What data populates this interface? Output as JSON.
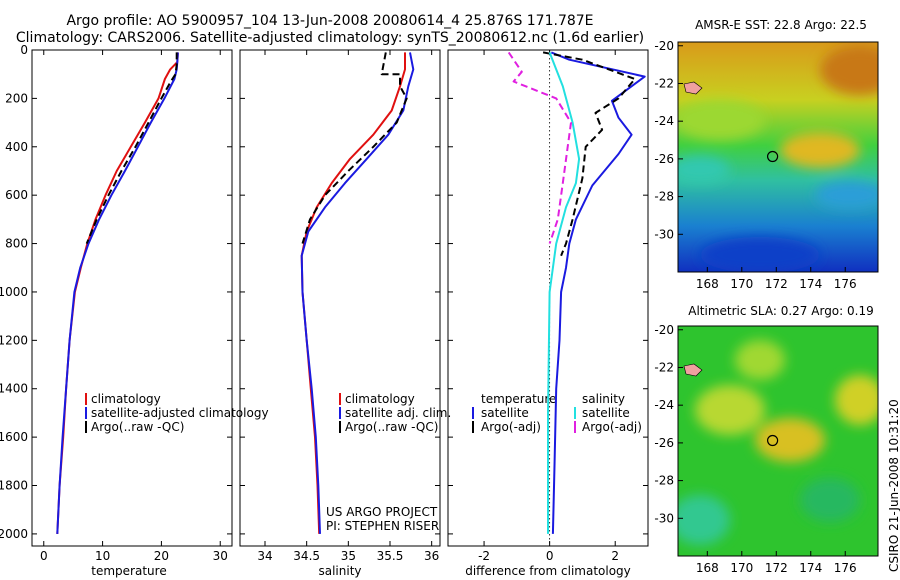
{
  "header": {
    "line1": "Argo profile: AO 5900957_104 13-Jun-2008 20080614_4 25.876S 171.787E",
    "line2": "Climatology: CARS2006. Satellite-adjusted climatology: synTS_20080612.nc (1.6d earlier)"
  },
  "stamp": "CSIRO 21-Jun-2008 10:31:20",
  "colors": {
    "red": "#e01010",
    "blue": "#1a1ae0",
    "black": "#000000",
    "cyan": "#22e0e0",
    "magenta": "#e020e0"
  },
  "chart_data": [
    {
      "type": "line",
      "xlabel": "temperature",
      "xlim": [
        -2,
        32
      ],
      "ylim": [
        0,
        2050
      ],
      "xticks": [
        "0",
        "10",
        "20",
        "30"
      ],
      "yticks": [
        "0",
        "200",
        "400",
        "600",
        "800",
        "1000",
        "1200",
        "1400",
        "1600",
        "1800",
        "2000"
      ],
      "legend": [
        "climatology",
        "satellite-adjusted climatology",
        "Argo(..raw -QC)"
      ],
      "series": [
        {
          "name": "climatology",
          "color": "red",
          "dash": false,
          "x": [
            22.8,
            22.7,
            21.5,
            20.6,
            19.5,
            17.2,
            14.8,
            12.4,
            10.5,
            8.8,
            7.4,
            6.3,
            5.3,
            4.4,
            3.8,
            3.3,
            2.7,
            2.3
          ],
          "y": [
            10,
            50,
            80,
            120,
            200,
            300,
            400,
            500,
            600,
            700,
            800,
            900,
            1000,
            1200,
            1400,
            1600,
            1800,
            2000
          ]
        },
        {
          "name": "satellite-adjusted climatology",
          "color": "blue",
          "dash": false,
          "x": [
            22.8,
            22.7,
            22.6,
            22.2,
            20.5,
            18.2,
            16.0,
            13.8,
            11.5,
            9.4,
            7.6,
            6.2,
            5.2,
            4.4,
            3.8,
            3.2,
            2.7,
            2.3
          ],
          "y": [
            10,
            50,
            80,
            120,
            200,
            300,
            400,
            500,
            600,
            700,
            800,
            900,
            1000,
            1200,
            1400,
            1600,
            1800,
            2000
          ]
        },
        {
          "name": "Argo(..raw -QC)",
          "color": "black",
          "dash": true,
          "x": [
            22.6,
            22.6,
            22.4,
            21.6,
            20.0,
            17.8,
            15.6,
            13.2,
            11.0,
            9.0,
            7.3
          ],
          "y": [
            10,
            60,
            100,
            130,
            200,
            300,
            400,
            500,
            600,
            700,
            800
          ]
        }
      ]
    },
    {
      "type": "line",
      "xlabel": "salinity",
      "xlim": [
        33.7,
        36.1
      ],
      "ylim": [
        0,
        2050
      ],
      "xticks": [
        "34",
        "34.5",
        "35",
        "35.5",
        "36"
      ],
      "legend": [
        "climatology",
        "satellite adj. clim.",
        "Argo(..raw -QC)"
      ],
      "annotation": [
        "US ARGO PROJECT",
        "PI: STEPHEN RISER"
      ],
      "series": [
        {
          "name": "climatology",
          "color": "red",
          "dash": false,
          "x": [
            35.68,
            35.68,
            35.62,
            35.52,
            35.3,
            35.02,
            34.8,
            34.62,
            34.5,
            34.44,
            34.45,
            34.5,
            34.55,
            34.6,
            34.63,
            34.65
          ],
          "y": [
            10,
            80,
            150,
            250,
            350,
            450,
            550,
            650,
            750,
            850,
            1000,
            1200,
            1400,
            1600,
            1800,
            2000
          ]
        },
        {
          "name": "satellite adj. clim.",
          "color": "blue",
          "dash": false,
          "x": [
            35.74,
            35.78,
            35.72,
            35.66,
            35.48,
            35.22,
            34.96,
            34.72,
            34.52,
            34.44,
            34.45,
            34.5,
            34.56,
            34.61,
            34.64,
            34.66
          ],
          "y": [
            10,
            80,
            150,
            250,
            350,
            450,
            550,
            650,
            750,
            850,
            1000,
            1200,
            1400,
            1600,
            1800,
            2000
          ]
        },
        {
          "name": "Argo(..raw -QC)",
          "color": "black",
          "dash": true,
          "x": [
            35.45,
            35.4,
            35.62,
            35.62,
            35.7,
            35.58,
            35.3,
            35.0,
            34.72,
            34.54,
            34.45
          ],
          "y": [
            10,
            100,
            100,
            150,
            200,
            300,
            400,
            500,
            600,
            700,
            800
          ]
        }
      ]
    },
    {
      "type": "line",
      "xlabel": "difference from climatology",
      "xlim": [
        -3.1,
        3.0
      ],
      "ylim": [
        0,
        2050
      ],
      "xticks": [
        "-2",
        "0",
        "2"
      ],
      "legend": [
        "temperature",
        "satellite",
        "Argo(-adj)",
        "salinity",
        "satellite",
        "Argo(-adj)"
      ],
      "series": [
        {
          "name": "temperature satellite",
          "color": "blue",
          "dash": false,
          "x": [
            0.05,
            0.6,
            2.9,
            1.9,
            2.1,
            2.5,
            2.1,
            1.3,
            0.8,
            0.6,
            0.5,
            0.35,
            0.3,
            0.2,
            0.15,
            0.1
          ],
          "y": [
            10,
            40,
            110,
            210,
            280,
            350,
            430,
            560,
            700,
            800,
            900,
            1000,
            1200,
            1400,
            1700,
            2000
          ]
        },
        {
          "name": "temperature Argo(-adj)",
          "color": "black",
          "dash": true,
          "x": [
            -0.2,
            1.0,
            2.6,
            2.1,
            1.4,
            1.6,
            1.1,
            1.0,
            0.7,
            0.5,
            0.35
          ],
          "y": [
            10,
            40,
            120,
            200,
            260,
            330,
            400,
            530,
            700,
            800,
            850
          ]
        },
        {
          "name": "salinity satellite",
          "color": "cyan",
          "dash": false,
          "x": [
            0.0,
            0.2,
            0.4,
            0.7,
            0.9,
            0.8,
            0.5,
            0.2,
            0.0,
            -0.05,
            -0.05
          ],
          "y": [
            10,
            80,
            150,
            300,
            450,
            550,
            650,
            800,
            1000,
            1500,
            2000
          ]
        },
        {
          "name": "salinity Argo(-adj)",
          "color": "magenta",
          "dash": true,
          "x": [
            -1.25,
            -0.85,
            -1.1,
            0.2,
            0.65,
            0.55,
            0.4,
            0.25,
            0.0
          ],
          "y": [
            10,
            90,
            130,
            200,
            300,
            400,
            550,
            700,
            800
          ]
        }
      ]
    },
    {
      "type": "heatmap",
      "title": "AMSR-E SST: 22.8 Argo: 22.5",
      "xticks": [
        "168",
        "170",
        "172",
        "174",
        "176"
      ],
      "yticks": [
        "-20",
        "-22",
        "-24",
        "-26",
        "-28",
        "-30"
      ],
      "marker": {
        "lon": 171.787,
        "lat": -25.876
      }
    },
    {
      "type": "heatmap",
      "title": "Altimetric SLA: 0.27 Argo: 0.19",
      "xticks": [
        "168",
        "170",
        "172",
        "174",
        "176"
      ],
      "yticks": [
        "-20",
        "-22",
        "-24",
        "-26",
        "-28",
        "-30"
      ],
      "marker": {
        "lon": 171.787,
        "lat": -25.876
      }
    }
  ]
}
